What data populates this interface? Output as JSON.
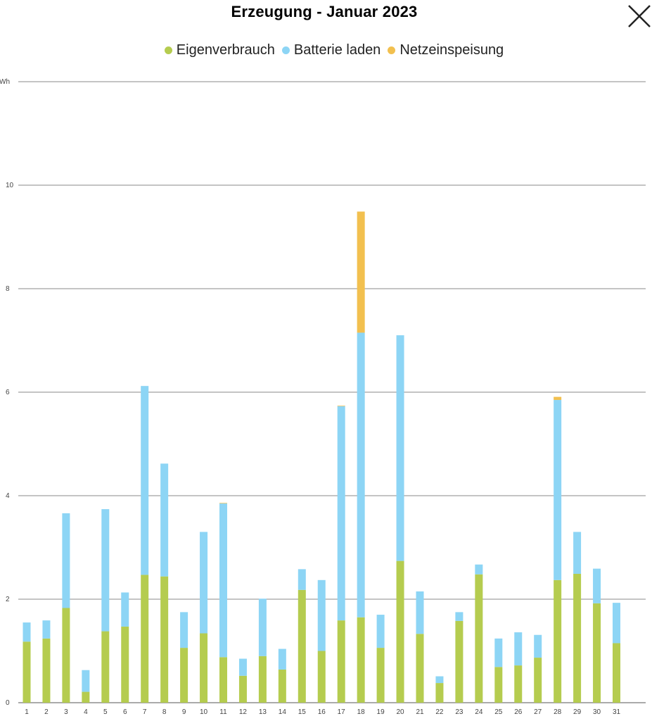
{
  "chart_data": {
    "type": "bar",
    "stacked": true,
    "title": "Erzeugung - Januar 2023",
    "ylabel": "kWh",
    "ylim": [
      0,
      12
    ],
    "yticks": [
      0,
      2,
      4,
      6,
      8,
      10
    ],
    "grid": true,
    "legend_position": "top",
    "categories": [
      "1",
      "2",
      "3",
      "4",
      "5",
      "6",
      "7",
      "8",
      "9",
      "10",
      "11",
      "12",
      "13",
      "14",
      "15",
      "16",
      "17",
      "18",
      "19",
      "20",
      "21",
      "22",
      "23",
      "24",
      "25",
      "26",
      "27",
      "28",
      "29",
      "30",
      "31"
    ],
    "series": [
      {
        "name": "Eigenverbrauch",
        "color": "#b5cc4f",
        "values": [
          1.18,
          1.24,
          1.83,
          0.21,
          1.38,
          1.47,
          2.47,
          2.44,
          1.06,
          1.34,
          0.88,
          0.52,
          0.9,
          0.64,
          2.18,
          1.0,
          1.59,
          1.65,
          1.06,
          2.74,
          1.33,
          0.38,
          1.58,
          2.48,
          0.69,
          0.72,
          0.87,
          2.37,
          2.49,
          1.92,
          1.15
        ]
      },
      {
        "name": "Batterie laden",
        "color": "#8dd5f5",
        "values": [
          0.37,
          0.35,
          1.83,
          0.42,
          2.36,
          0.66,
          3.65,
          2.18,
          0.69,
          1.96,
          2.97,
          0.33,
          1.11,
          0.4,
          0.4,
          1.37,
          4.14,
          5.5,
          0.64,
          4.36,
          0.82,
          0.13,
          0.17,
          0.19,
          0.55,
          0.64,
          0.44,
          3.48,
          0.81,
          0.67,
          0.78
        ]
      },
      {
        "name": "Netzeinspeisung",
        "color": "#f2c04f",
        "values": [
          0,
          0,
          0,
          0,
          0,
          0,
          0,
          0,
          0,
          0,
          0.01,
          0,
          0,
          0,
          0,
          0,
          0.01,
          2.34,
          0,
          0,
          0,
          0,
          0,
          0,
          0,
          0,
          0,
          0.06,
          0,
          0,
          0
        ]
      }
    ]
  },
  "header": {
    "close_icon": "close-icon"
  }
}
